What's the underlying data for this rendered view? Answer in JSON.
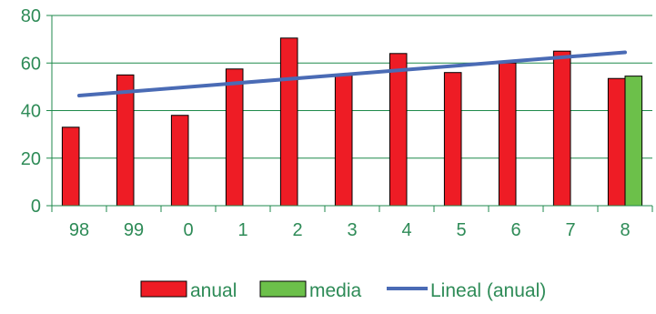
{
  "chart_data": {
    "type": "bar",
    "categories": [
      "98",
      "99",
      "0",
      "1",
      "2",
      "3",
      "4",
      "5",
      "6",
      "7",
      "8"
    ],
    "series": [
      {
        "name": "anual",
        "type": "bar",
        "color": "#ee1c25",
        "values": [
          33,
          55,
          38,
          57.5,
          70.5,
          55,
          64,
          56,
          60,
          65,
          53.5
        ]
      },
      {
        "name": "media",
        "type": "bar",
        "color": "#6cc04a",
        "values": [
          null,
          null,
          null,
          null,
          null,
          null,
          null,
          null,
          null,
          null,
          54.5
        ]
      }
    ],
    "trendline": {
      "name": "Lineal (anual)",
      "type": "line",
      "color": "#4a6bb5",
      "values": [
        46.3,
        64.5
      ]
    },
    "ylim": [
      0,
      80
    ],
    "yticks": [
      "0",
      "20",
      "40",
      "60",
      "80"
    ],
    "grid": true,
    "legend_position": "bottom"
  }
}
